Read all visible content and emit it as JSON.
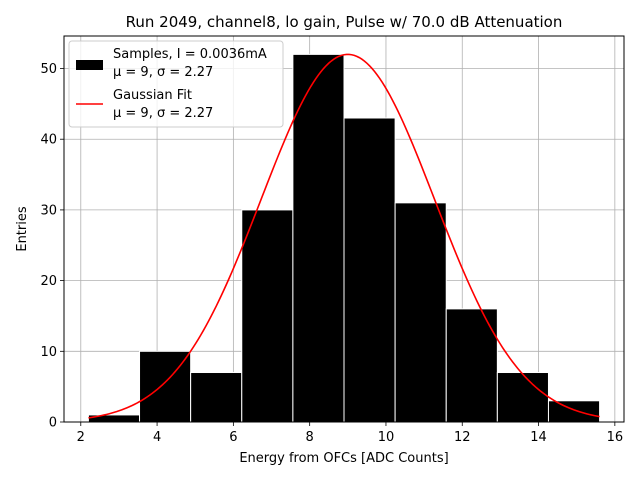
{
  "chart_data": {
    "type": "histogram",
    "title": "Run 2049, channel8, lo gain, Pulse w/ 70.0 dB Attenuation",
    "xlabel": "Energy from OFCs [ADC Counts]",
    "ylabel": "Entries",
    "xlim": [
      1.56,
      16.24
    ],
    "ylim": [
      0,
      54.6
    ],
    "xticks": [
      2,
      4,
      6,
      8,
      10,
      12,
      14,
      16
    ],
    "yticks": [
      0,
      10,
      20,
      30,
      40,
      50
    ],
    "grid": true,
    "bin_edges": [
      2.2,
      3.54,
      4.88,
      6.22,
      7.56,
      8.9,
      10.24,
      11.58,
      12.92,
      14.26,
      15.6
    ],
    "counts": [
      1,
      10,
      7,
      30,
      52,
      43,
      31,
      16,
      7,
      3
    ],
    "bar_color": "#000000",
    "bar_edge_color": "#ffffff",
    "fit": {
      "name": "Gaussian Fit",
      "mu": 9,
      "sigma": 2.27,
      "amplitude": 52,
      "x_range": [
        2.2,
        15.6
      ],
      "color": "#ff0000"
    },
    "legend": {
      "position": "upper-left",
      "entries": [
        {
          "label_line1": "Samples, I = 0.0036mA",
          "label_line2": "μ = 9, σ = 2.27",
          "kind": "bar"
        },
        {
          "label_line1": "Gaussian Fit",
          "label_line2": "μ = 9, σ = 2.27",
          "kind": "line"
        }
      ]
    }
  }
}
